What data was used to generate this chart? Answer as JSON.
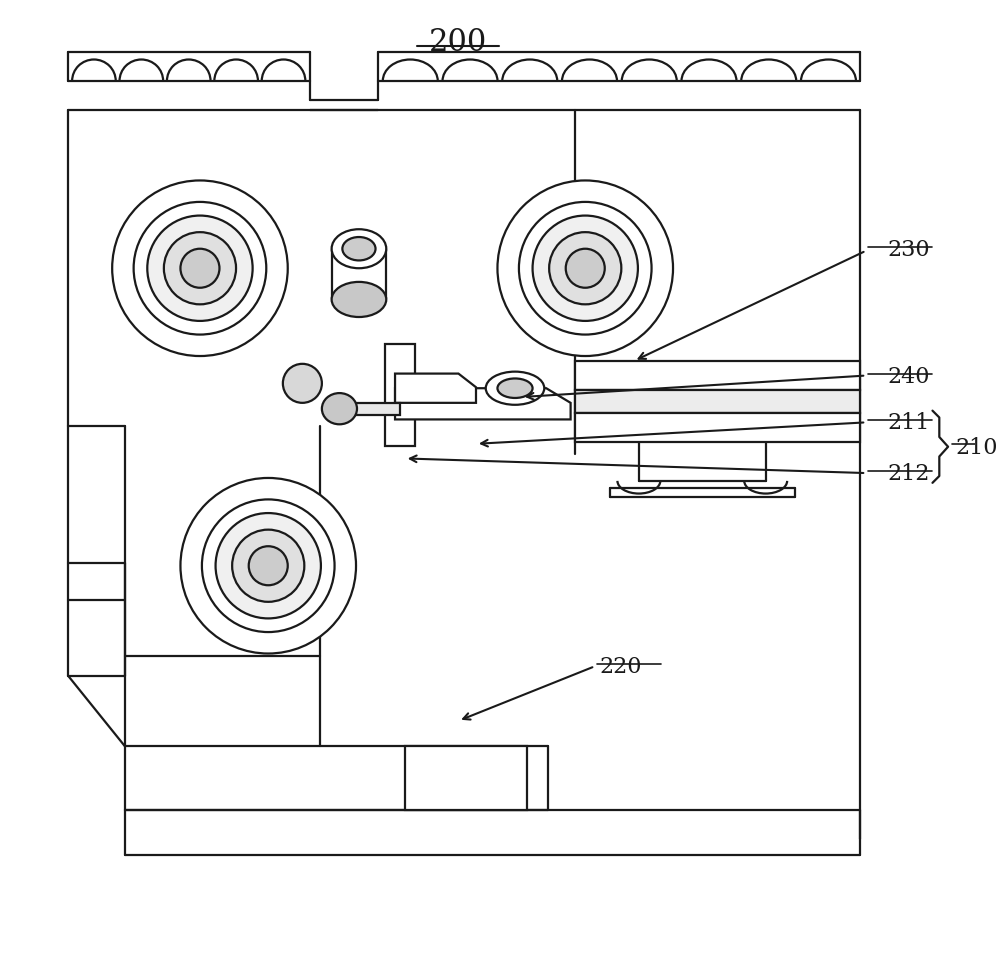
{
  "bg_color": "#ffffff",
  "line_color": "#1a1a1a",
  "lw_main": 1.6,
  "lw_thin": 1.1,
  "title": "200",
  "label_230": "230",
  "label_240": "240",
  "label_211": "211",
  "label_212": "212",
  "label_210": "210",
  "label_220": "220",
  "font_size_title": 22,
  "font_size_label": 16
}
